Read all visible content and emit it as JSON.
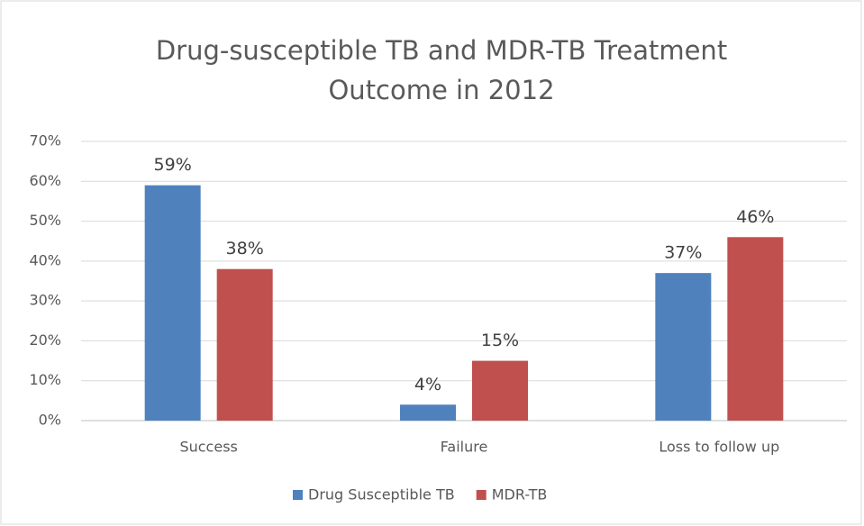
{
  "chart_data": {
    "type": "bar",
    "title": [
      "Drug-susceptible TB and MDR-TB Treatment",
      "Outcome in 2012"
    ],
    "categories": [
      "Success",
      "Failure",
      "Loss to follow up"
    ],
    "series": [
      {
        "name": "Drug Susceptible TB",
        "color": "#4f81bd",
        "values": [
          59,
          4,
          37
        ],
        "value_labels": [
          "59%",
          "4%",
          "37%"
        ]
      },
      {
        "name": "MDR-TB",
        "color": "#c0504d",
        "values": [
          38,
          15,
          46
        ],
        "value_labels": [
          "38%",
          "15%",
          "46%"
        ]
      }
    ],
    "ylim": [
      0,
      70
    ],
    "yticks": [
      {
        "value": 0,
        "label": "0%"
      },
      {
        "value": 10,
        "label": "10%"
      },
      {
        "value": 20,
        "label": "20%"
      },
      {
        "value": 30,
        "label": "30%"
      },
      {
        "value": 40,
        "label": "40%"
      },
      {
        "value": 50,
        "label": "50%"
      },
      {
        "value": 60,
        "label": "60%"
      },
      {
        "value": 70,
        "label": "70%"
      }
    ],
    "grid": true,
    "legend": "bottom"
  }
}
